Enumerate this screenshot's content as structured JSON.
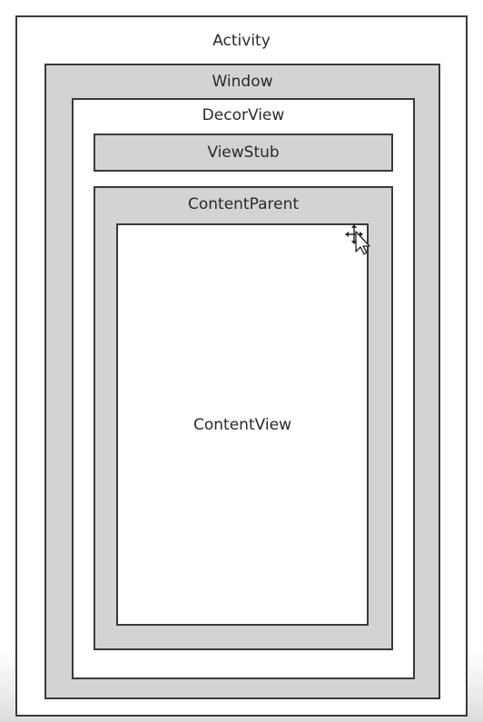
{
  "diagram": {
    "boxes": {
      "activity": "Activity",
      "window": "Window",
      "decor_view": "DecorView",
      "view_stub": "ViewStub",
      "content_parent": "ContentParent",
      "content_view": "ContentView"
    }
  },
  "icons": {
    "cursor": "move-cursor-icon"
  }
}
